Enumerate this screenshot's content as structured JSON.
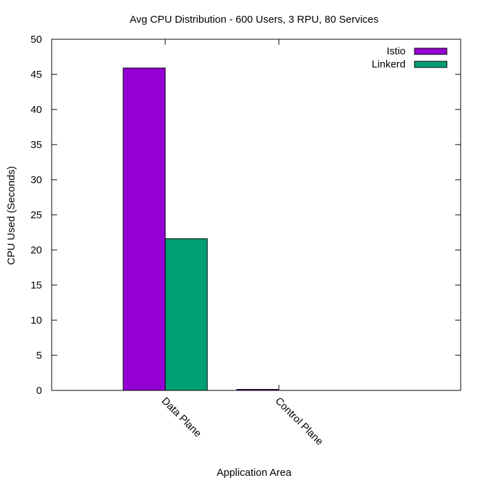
{
  "chart_data": {
    "type": "bar",
    "title": "Avg CPU Distribution - 600 Users, 3 RPU, 80 Services",
    "xlabel": "Application Area",
    "ylabel": "CPU Used (Seconds)",
    "categories": [
      "Data Plane",
      "Control Plane"
    ],
    "series": [
      {
        "name": "Istio",
        "values": [
          45.9,
          0.15
        ],
        "color": "#9400d3"
      },
      {
        "name": "Linkerd",
        "values": [
          21.6,
          0.0
        ],
        "color": "#009e73"
      }
    ],
    "ylim": [
      0,
      50
    ],
    "yticks": [
      0,
      5,
      10,
      15,
      20,
      25,
      30,
      35,
      40,
      45,
      50
    ],
    "xlim": [
      -1,
      2.6
    ],
    "grid": false,
    "legend_position": "top-right"
  }
}
